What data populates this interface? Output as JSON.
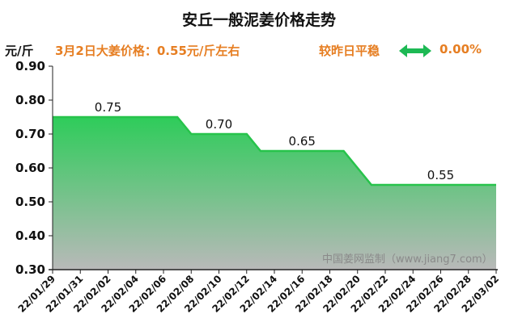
{
  "header": {
    "title": "安丘一般泥姜价格走势",
    "unit": "元/斤",
    "info": "3月2日大姜价格：0.55元/斤左右",
    "status": "较昨日平稳",
    "change": "0.00%"
  },
  "watermark": "中国姜网监制（www.jiang7.com）",
  "colors": {
    "line": "#27c34b",
    "fill_top": "#2ecc5a",
    "fill_bottom": "#b9b9b9",
    "accent": "#e67e22",
    "arrow": "#1db954"
  },
  "chart_data": {
    "type": "area",
    "title": "安丘一般泥姜价格走势",
    "ylabel": "元/斤",
    "ylim": [
      0.3,
      0.9
    ],
    "yticks": [
      "0.90",
      "0.80",
      "0.70",
      "0.60",
      "0.50",
      "0.40",
      "0.30"
    ],
    "xticks": [
      "22/01/29",
      "22/01/31",
      "22/02/02",
      "22/02/04",
      "22/02/06",
      "22/02/08",
      "22/02/10",
      "22/02/12",
      "22/02/14",
      "22/02/16",
      "22/02/18",
      "22/02/20",
      "22/02/22",
      "22/02/24",
      "22/02/26",
      "22/02/28",
      "22/03/02"
    ],
    "series": [
      {
        "x": [
          "22/01/29",
          "22/02/07",
          "22/02/08",
          "22/02/12",
          "22/02/13",
          "22/02/19",
          "22/02/21",
          "22/03/02"
        ],
        "values": [
          0.75,
          0.75,
          0.7,
          0.7,
          0.65,
          0.65,
          0.55,
          0.55
        ]
      }
    ],
    "annotations": [
      {
        "x": "22/02/02",
        "value": 0.75,
        "label": "0.75"
      },
      {
        "x": "22/02/10",
        "value": 0.7,
        "label": "0.70"
      },
      {
        "x": "22/02/16",
        "value": 0.65,
        "label": "0.65"
      },
      {
        "x": "22/02/26",
        "value": 0.55,
        "label": "0.55"
      }
    ],
    "grid": false,
    "legend": "none"
  }
}
